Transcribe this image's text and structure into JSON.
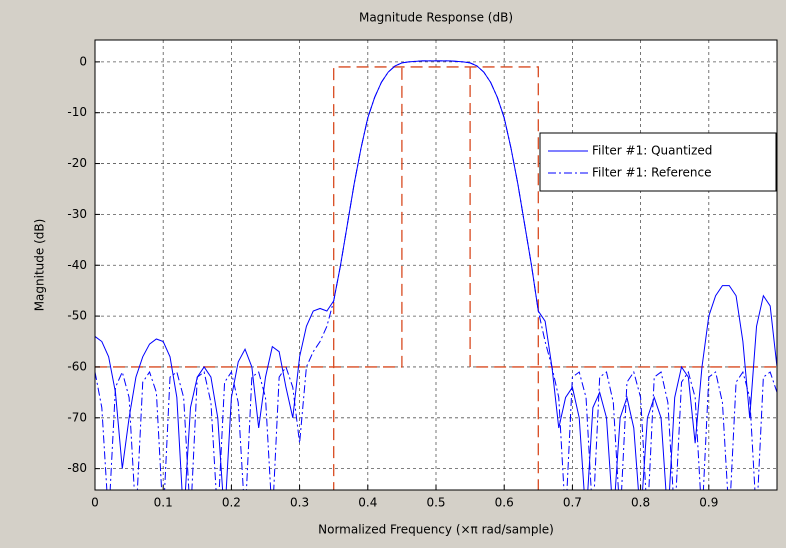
{
  "chart_data": {
    "type": "line",
    "title": "Magnitude Response (dB)",
    "x_label": "Normalized Frequency  (×π rad/sample)",
    "y_label": "Magnitude (dB)",
    "xlim": [
      0,
      1
    ],
    "ylim": [
      -84.2,
      4.3
    ],
    "xticks": [
      0,
      0.1,
      0.2,
      0.3,
      0.4,
      0.5,
      0.6,
      0.7,
      0.8,
      0.9
    ],
    "yticks": [
      0,
      -10,
      -20,
      -30,
      -40,
      -50,
      -60,
      -70,
      -80
    ],
    "grid": true,
    "legend": "right",
    "x": [
      0,
      0.01,
      0.02,
      0.03,
      0.04,
      0.05,
      0.06,
      0.07,
      0.08,
      0.09,
      0.1,
      0.11,
      0.12,
      0.13,
      0.14,
      0.15,
      0.16,
      0.17,
      0.18,
      0.19,
      0.2,
      0.21,
      0.22,
      0.23,
      0.24,
      0.25,
      0.26,
      0.27,
      0.28,
      0.29,
      0.3,
      0.31,
      0.32,
      0.33,
      0.34,
      0.35,
      0.36,
      0.37,
      0.38,
      0.39,
      0.4,
      0.41,
      0.42,
      0.43,
      0.44,
      0.45,
      0.46,
      0.47,
      0.48,
      0.49,
      0.5,
      0.51,
      0.52,
      0.53,
      0.54,
      0.55,
      0.56,
      0.57,
      0.58,
      0.59,
      0.6,
      0.61,
      0.62,
      0.63,
      0.64,
      0.65,
      0.66,
      0.67,
      0.68,
      0.69,
      0.7,
      0.71,
      0.72,
      0.73,
      0.74,
      0.75,
      0.76,
      0.77,
      0.78,
      0.79,
      0.8,
      0.81,
      0.82,
      0.83,
      0.84,
      0.85,
      0.86,
      0.87,
      0.88,
      0.89,
      0.9,
      0.91,
      0.92,
      0.93,
      0.94,
      0.95,
      0.96,
      0.97,
      0.98,
      0.99,
      1
    ],
    "series": [
      {
        "name": "Filter #1: Quantized",
        "color": "#0000ff",
        "linestyle": "solid",
        "values": [
          -54,
          -55,
          -58,
          -65,
          -80,
          -70,
          -62,
          -58,
          -55.5,
          -54.5,
          -55,
          -58,
          -66,
          -90,
          -68,
          -62,
          -60,
          -62,
          -70,
          -90,
          -66,
          -59,
          -56.5,
          -60,
          -72,
          -62,
          -56,
          -57,
          -64,
          -70,
          -58,
          -52,
          -49,
          -48.5,
          -49,
          -47,
          -40,
          -32,
          -24,
          -17,
          -11,
          -7,
          -4,
          -2,
          -0.8,
          -0.2,
          0,
          0.1,
          0.2,
          0.2,
          0.2,
          0.2,
          0.2,
          0.1,
          0,
          -0.2,
          -0.8,
          -2,
          -4,
          -7,
          -11,
          -17,
          -24,
          -32,
          -40,
          -49,
          -51,
          -60,
          -72,
          -66,
          -64,
          -70,
          -90,
          -68,
          -65,
          -70,
          -90,
          -70,
          -66,
          -72,
          -90,
          -70,
          -66,
          -70,
          -90,
          -66,
          -60,
          -62,
          -75,
          -60,
          -50,
          -46,
          -44,
          -44,
          -46,
          -55,
          -70,
          -52,
          -46,
          -48,
          -60
        ]
      },
      {
        "name": "Filter #1: Reference",
        "color": "#0000ff",
        "linestyle": "dashdot",
        "values": [
          -61,
          -68,
          -90,
          -64,
          -61,
          -66,
          -90,
          -63,
          -61,
          -65,
          -90,
          -62,
          -61,
          -66,
          -90,
          -62,
          -61,
          -67,
          -90,
          -63,
          -61,
          -67,
          -90,
          -62,
          -61,
          -66,
          -90,
          -62,
          -60,
          -64,
          -75,
          -60,
          -57,
          -55,
          -52,
          -47,
          -40,
          -32,
          -24,
          -17,
          -11,
          -7,
          -4,
          -2,
          -0.8,
          -0.2,
          0,
          0.1,
          0.2,
          0.2,
          0.2,
          0.2,
          0.2,
          0.1,
          0,
          -0.2,
          -0.8,
          -2,
          -4,
          -7,
          -11,
          -17,
          -24,
          -32,
          -40,
          -49,
          -55,
          -60,
          -66,
          -90,
          -62,
          -61,
          -66,
          -90,
          -62,
          -61,
          -67,
          -90,
          -63,
          -61,
          -66,
          -90,
          -62,
          -61,
          -67,
          -90,
          -63,
          -61,
          -66,
          -90,
          -62,
          -61,
          -67,
          -90,
          -63,
          -61,
          -66,
          -90,
          -62,
          -61,
          -65
        ]
      }
    ],
    "mask": {
      "color": "#d84a20",
      "x": [
        0,
        0.45,
        0.45,
        null,
        0.35,
        0.35,
        0.65,
        0.65,
        null,
        0.55,
        0.55,
        1
      ],
      "values": [
        -60,
        -60,
        -1,
        null,
        -85,
        -1,
        -1,
        -85,
        null,
        -1,
        -60,
        -60
      ]
    }
  }
}
